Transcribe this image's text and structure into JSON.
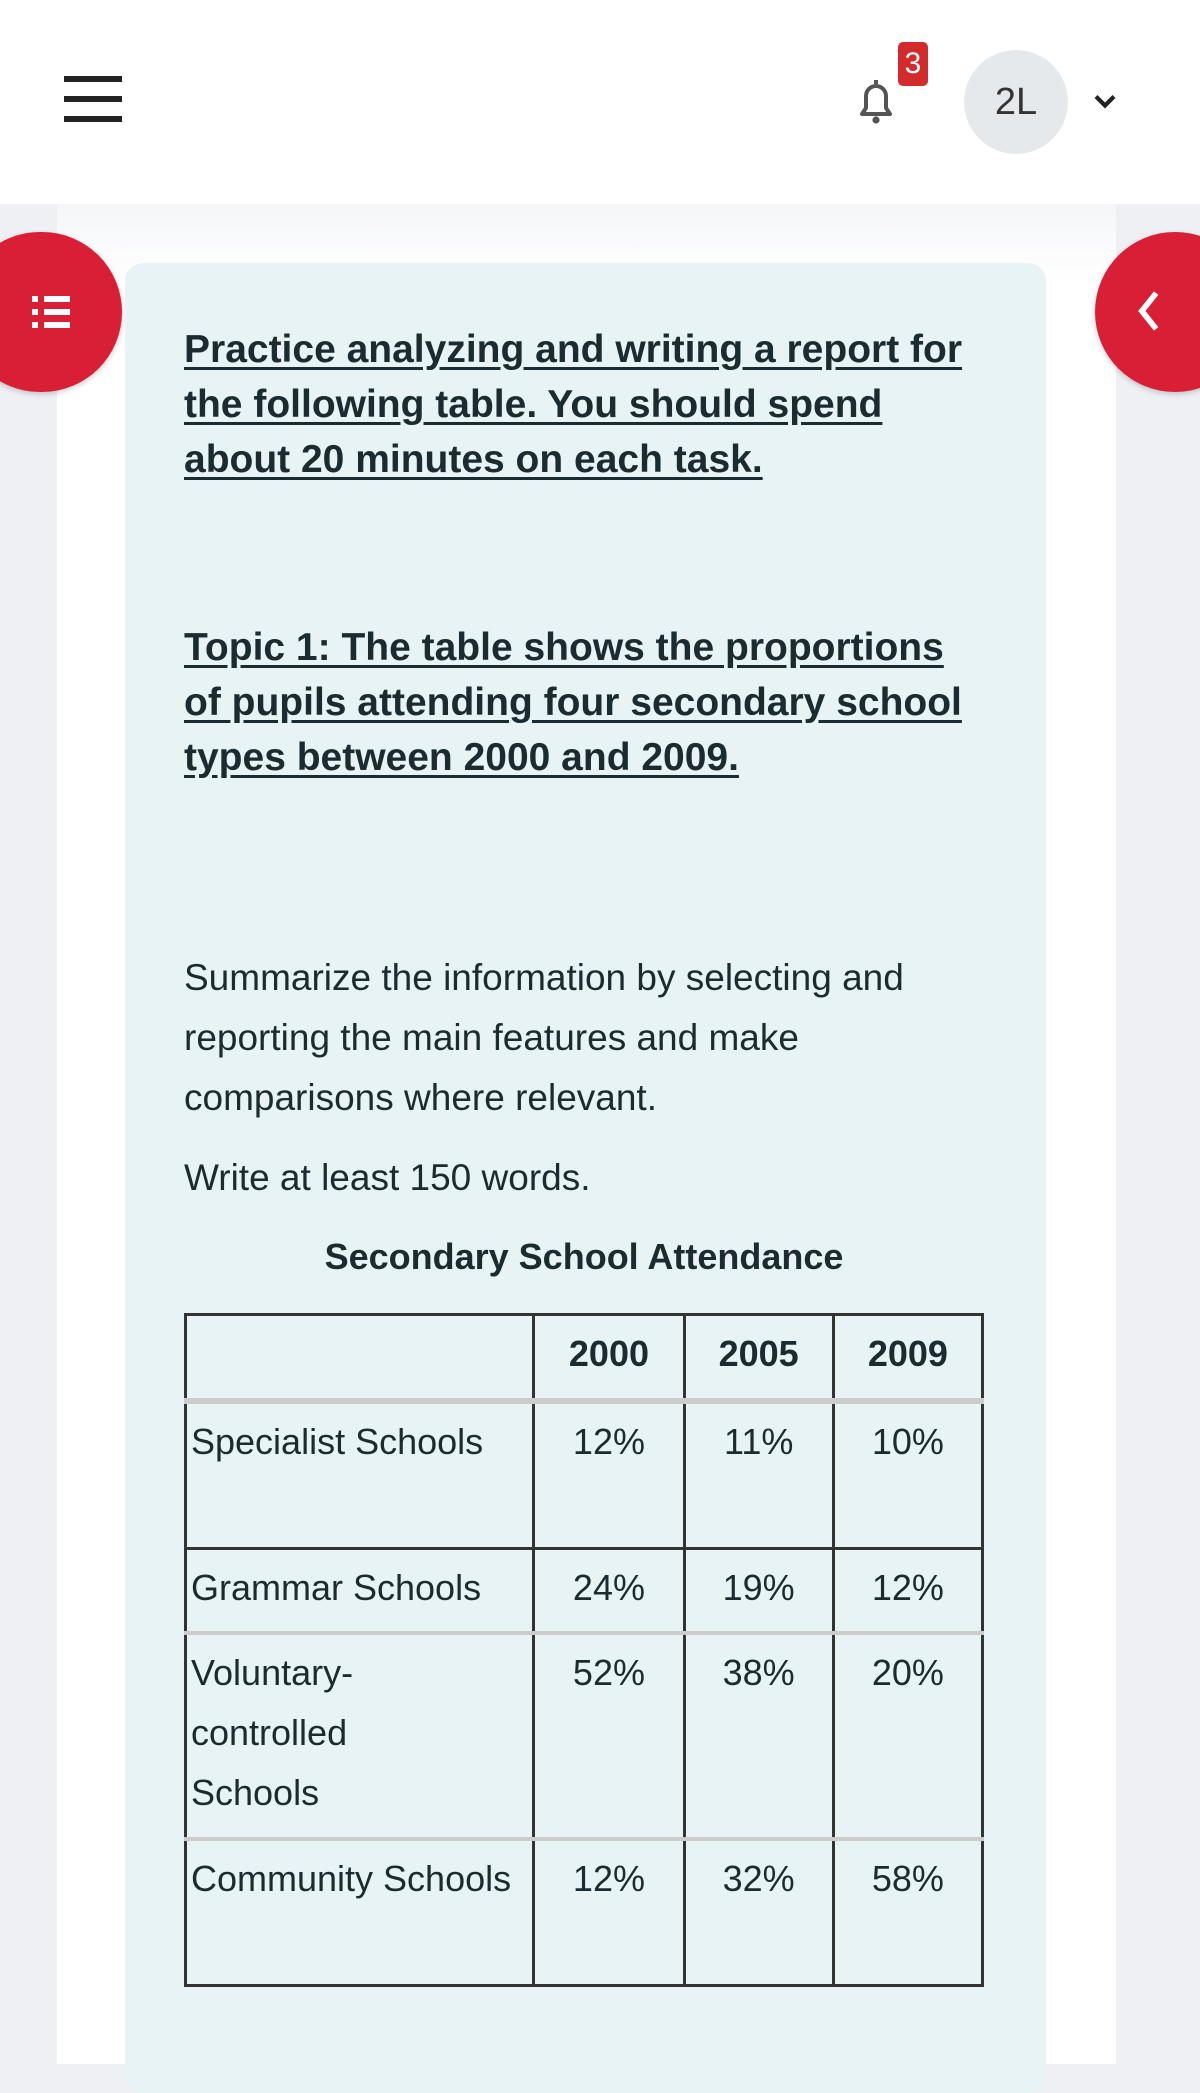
{
  "header": {
    "notification_count": "3",
    "avatar_initials": "2L",
    "icons": [
      "menu-icon",
      "bell-icon",
      "chevron-down-icon"
    ]
  },
  "side_tabs": {
    "left_icon": "list-icon",
    "right_icon": "chevron-left-icon",
    "color": "#d91f36"
  },
  "content": {
    "instruction": "Practice analyzing and writing a report for the following table. You should spend about 20 minutes on each task.",
    "topic": "Topic 1: The table shows the proportions of pupils attending four secondary school types between 2000 and 2009.",
    "task": "Summarize the information by selecting and reporting the main features and make comparisons where relevant.",
    "word_count": "Write at least 150 words."
  },
  "table": {
    "title": "Secondary School Attendance",
    "columns": [
      "",
      "2000",
      "2005",
      "2009"
    ],
    "rows": [
      {
        "label": "Specialist Schools",
        "values": [
          "12%",
          "11%",
          "10%"
        ]
      },
      {
        "label": "Grammar Schools",
        "values": [
          "24%",
          "19%",
          "12%"
        ]
      },
      {
        "label": "Voluntary-controlled Schools",
        "values": [
          "52%",
          "38%",
          "20%"
        ]
      },
      {
        "label": "Community Schools",
        "values": [
          "12%",
          "32%",
          "58%"
        ]
      }
    ]
  }
}
